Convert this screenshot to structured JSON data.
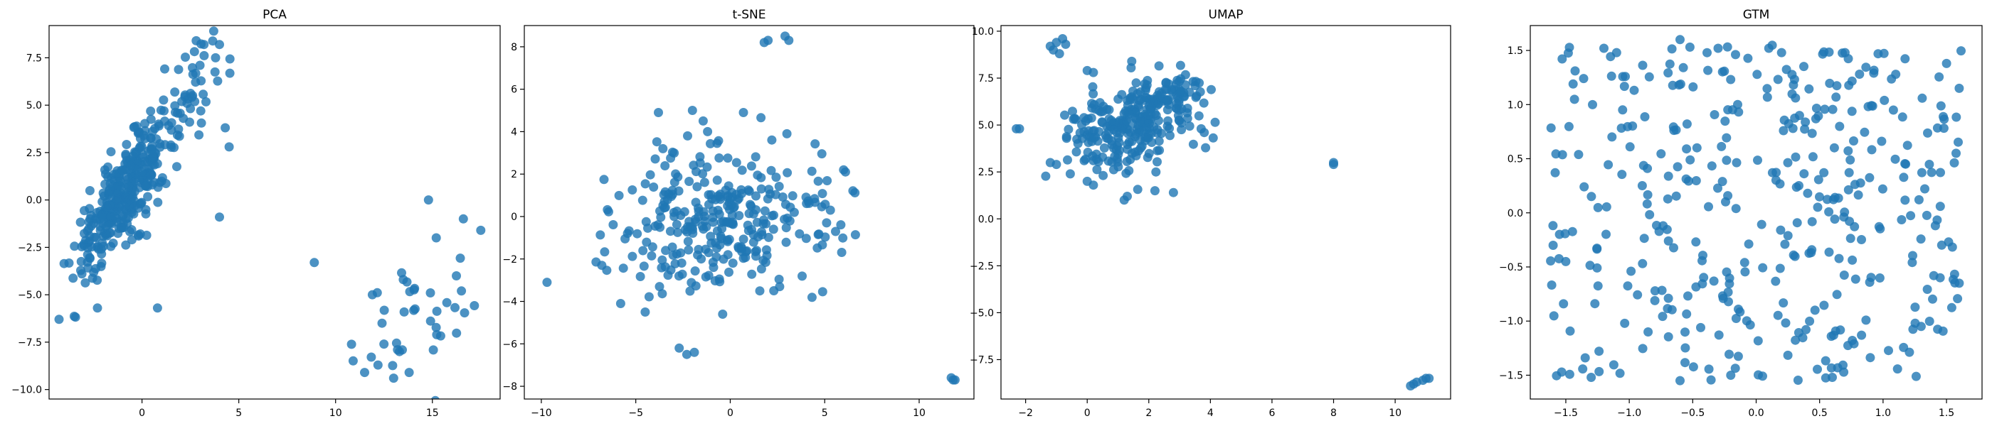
{
  "chart_data": [
    {
      "type": "scatter",
      "title": "PCA",
      "xlim": [
        -4.8,
        18.5
      ],
      "ylim": [
        -10.5,
        9.2
      ],
      "xticks": [
        0,
        5,
        10,
        15
      ],
      "yticks": [
        -10.0,
        -7.5,
        -5.0,
        -2.5,
        0.0,
        2.5,
        5.0,
        7.5
      ],
      "point_color": "#1f77b4",
      "clusters": [
        {
          "cx": -0.9,
          "cy": 0.3,
          "sx": 1.3,
          "sy": 2.0,
          "rho": 0.82,
          "n": 340
        },
        {
          "cx": 2.6,
          "cy": 5.6,
          "sx": 0.9,
          "sy": 1.4,
          "rho": 0.3,
          "n": 45
        },
        {
          "cx": 14.4,
          "cy": -5.8,
          "sx": 1.6,
          "sy": 2.1,
          "rho": 0.35,
          "n": 32
        }
      ],
      "points": [
        [
          2.8,
          8.4
        ],
        [
          3.2,
          8.2
        ],
        [
          4.0,
          8.2
        ],
        [
          3.8,
          7.5
        ],
        [
          4.5,
          2.8
        ],
        [
          4.0,
          -0.9
        ],
        [
          0.8,
          -5.7
        ],
        [
          -2.3,
          -5.7
        ],
        [
          8.9,
          -3.3
        ],
        [
          14.8,
          0.0
        ],
        [
          16.6,
          -1.0
        ],
        [
          17.5,
          -1.6
        ],
        [
          11.5,
          -9.1
        ],
        [
          13.8,
          -9.1
        ],
        [
          13.0,
          -9.4
        ],
        [
          13.3,
          -8.0
        ],
        [
          12.5,
          -7.6
        ],
        [
          16.5,
          -4.8
        ],
        [
          13.5,
          -4.2
        ],
        [
          15.2,
          -2.0
        ],
        [
          14.9,
          -4.9
        ],
        [
          12.4,
          -6.5
        ],
        [
          11.9,
          -5.0
        ],
        [
          13.2,
          -7.9
        ]
      ]
    },
    {
      "type": "scatter",
      "title": "t-SNE",
      "xlim": [
        -10.9,
        12.9
      ],
      "ylim": [
        -8.6,
        9.0
      ],
      "xticks": [
        -10,
        -5,
        0,
        5,
        10
      ],
      "yticks": [
        -8,
        -6,
        -4,
        -2,
        0,
        2,
        4,
        6,
        8
      ],
      "point_color": "#1f77b4",
      "clusters": [
        {
          "cx": -0.2,
          "cy": -0.2,
          "sx": 2.8,
          "sy": 1.8,
          "rho": 0.05,
          "n": 300
        }
      ],
      "points": [
        [
          2.0,
          8.3
        ],
        [
          2.9,
          8.5
        ],
        [
          3.1,
          8.3
        ],
        [
          1.8,
          8.2
        ],
        [
          -9.7,
          -3.1
        ],
        [
          11.7,
          -7.6
        ],
        [
          11.9,
          -7.7
        ],
        [
          11.8,
          -7.7
        ],
        [
          -1.9,
          -6.4
        ],
        [
          -2.7,
          -6.2
        ],
        [
          -2.3,
          -6.5
        ],
        [
          -3.8,
          4.9
        ],
        [
          -2.0,
          5.0
        ],
        [
          -1.2,
          4.0
        ],
        [
          -4.5,
          -4.5
        ],
        [
          -0.4,
          -4.6
        ],
        [
          6.0,
          2.2
        ],
        [
          6.1,
          2.1
        ],
        [
          5.1,
          -0.3
        ],
        [
          5.3,
          0.3
        ],
        [
          0.7,
          4.9
        ],
        [
          -5.8,
          -4.1
        ],
        [
          -6.8,
          -2.3
        ],
        [
          3.0,
          3.9
        ]
      ]
    },
    {
      "type": "scatter",
      "title": "UMAP",
      "xlim": [
        -2.8,
        11.8
      ],
      "ylim": [
        -9.6,
        10.3
      ],
      "xticks": [
        -2,
        0,
        2,
        4,
        6,
        8,
        10
      ],
      "yticks": [
        -7.5,
        -5.0,
        -2.5,
        0.0,
        2.5,
        5.0,
        7.5,
        10.0
      ],
      "point_color": "#1f77b4",
      "clusters": [
        {
          "cx": 1.2,
          "cy": 4.8,
          "sx": 1.0,
          "sy": 1.2,
          "rho": 0.2,
          "n": 240
        },
        {
          "cx": 2.6,
          "cy": 6.4,
          "sx": 0.6,
          "sy": 0.7,
          "rho": 0.4,
          "n": 60
        }
      ],
      "points": [
        [
          -1.0,
          9.4
        ],
        [
          -0.8,
          9.6
        ],
        [
          -1.1,
          9.0
        ],
        [
          -0.9,
          8.8
        ],
        [
          -1.2,
          9.2
        ],
        [
          -0.7,
          9.3
        ],
        [
          0.0,
          7.9
        ],
        [
          0.2,
          7.8
        ],
        [
          -2.2,
          4.8
        ],
        [
          -2.3,
          4.8
        ],
        [
          3.7,
          4.8
        ],
        [
          3.8,
          4.6
        ],
        [
          8.0,
          3.0
        ],
        [
          8.0,
          2.9
        ],
        [
          10.5,
          -8.9
        ],
        [
          10.7,
          -8.7
        ],
        [
          10.9,
          -8.6
        ],
        [
          11.1,
          -8.5
        ],
        [
          10.6,
          -8.8
        ],
        [
          11.0,
          -8.5
        ],
        [
          1.2,
          1.0
        ],
        [
          1.3,
          1.2
        ],
        [
          2.8,
          1.4
        ],
        [
          2.2,
          1.5
        ],
        [
          -1.2,
          3.0
        ],
        [
          -1.0,
          2.9
        ],
        [
          0.0,
          2.0
        ],
        [
          0.2,
          1.8
        ]
      ]
    },
    {
      "type": "scatter",
      "title": "GTM",
      "xlim": [
        -1.78,
        1.78
      ],
      "ylim": [
        -1.72,
        1.73
      ],
      "xticks": [
        -1.5,
        -1.0,
        -0.5,
        0.0,
        0.5,
        1.0,
        1.5
      ],
      "yticks": [
        -1.5,
        -1.0,
        -0.5,
        0.0,
        0.5,
        1.0,
        1.5
      ],
      "point_color": "#1f77b4",
      "uniform": {
        "xmin": -1.62,
        "xmax": 1.62,
        "ymin": -1.55,
        "ymax": 1.55,
        "n": 380
      },
      "points": [
        [
          -0.6,
          1.6
        ],
        [
          -0.3,
          1.52
        ],
        [
          0.1,
          1.52
        ],
        [
          0.2,
          1.48
        ],
        [
          0.7,
          1.48
        ],
        [
          1.1,
          1.28
        ],
        [
          1.5,
          1.38
        ],
        [
          1.6,
          1.15
        ],
        [
          -1.2,
          1.52
        ],
        [
          -1.1,
          1.48
        ],
        [
          1.3,
          -1.05
        ],
        [
          1.4,
          -0.58
        ],
        [
          1.45,
          -0.6
        ],
        [
          1.6,
          -0.65
        ],
        [
          -1.3,
          -1.52
        ],
        [
          -0.2,
          -1.5
        ],
        [
          0.6,
          -1.52
        ],
        [
          -0.6,
          -1.55
        ],
        [
          -1.6,
          -0.3
        ],
        [
          -1.5,
          -0.45
        ]
      ]
    }
  ]
}
